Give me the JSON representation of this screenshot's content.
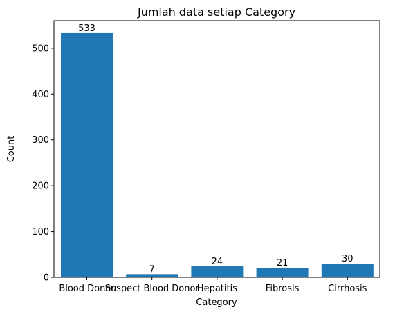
{
  "chart_data": {
    "type": "bar",
    "title": "Jumlah data setiap Category",
    "xlabel": "Category",
    "ylabel": "Count",
    "categories": [
      "Blood Donor",
      "Suspect Blood Donor",
      "Hepatitis",
      "Fibrosis",
      "Cirrhosis"
    ],
    "values": [
      533,
      7,
      24,
      21,
      30
    ],
    "yticks": [
      0,
      100,
      200,
      300,
      400,
      500
    ],
    "ylim": [
      0,
      560
    ],
    "bar_color": "#1f77b4",
    "grid": false,
    "legend": "none"
  }
}
